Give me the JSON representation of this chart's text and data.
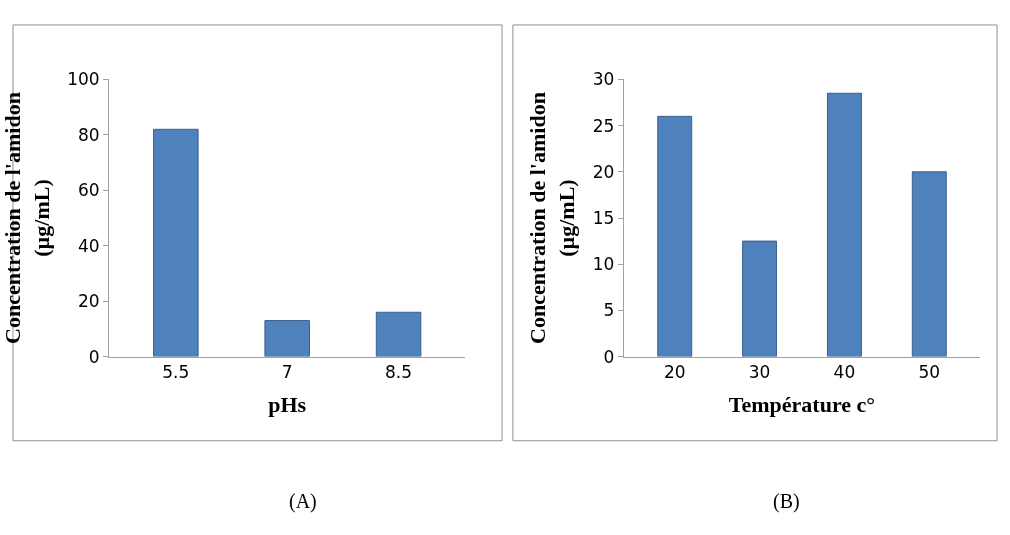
{
  "chart_data": [
    {
      "type": "bar",
      "categories": [
        "5.5",
        "7",
        "8.5"
      ],
      "values": [
        82,
        13,
        16
      ],
      "color": "#4f81bd",
      "xlabel": "pHs",
      "ylabel": "Concentration de l'amidon (µg/mL)",
      "ylim": [
        0,
        100
      ],
      "yticks": [
        0,
        20,
        40,
        60,
        80,
        100
      ],
      "annotations": [
        "(A)"
      ]
    },
    {
      "type": "bar",
      "categories": [
        "20",
        "30",
        "40",
        "50"
      ],
      "values": [
        26,
        12.5,
        28.5,
        20
      ],
      "color": "#4f81bd",
      "xlabel": "Température c°",
      "ylabel": "Concentration de l'amidon (µg/mL)",
      "ylim": [
        0,
        30
      ],
      "yticks": [
        0,
        5,
        10,
        15,
        20,
        25,
        30
      ],
      "annotations": [
        "(B)"
      ]
    }
  ]
}
